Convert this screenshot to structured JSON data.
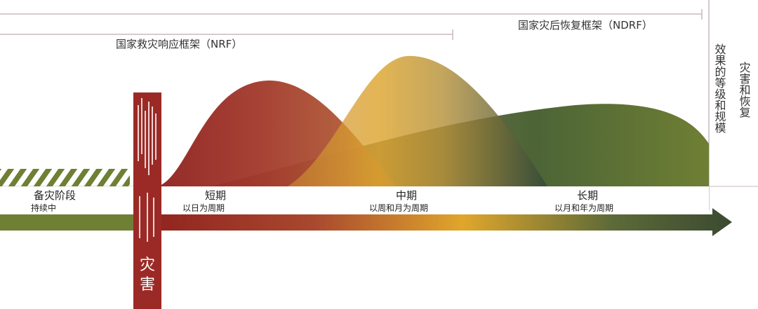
{
  "frameworks": {
    "ndrf_label": "国家灾后恢复框架（NDRF）",
    "nrf_label": "国家救灾响应框架（NRF）"
  },
  "axis": {
    "right_label_1": "效果的等级和规模",
    "right_label_2": "灾害和恢复"
  },
  "phases": {
    "prep": {
      "title": "备灾阶段",
      "subtitle": "持续中"
    },
    "short": {
      "title": "短期",
      "subtitle": "以日为周期"
    },
    "mid": {
      "title": "中期",
      "subtitle": "以周和月为周期"
    },
    "long": {
      "title": "长期",
      "subtitle": "以月和年为周期"
    }
  },
  "disaster": {
    "label": "灾害"
  },
  "colors": {
    "red": "#9b2a26",
    "dark_red": "#8e1f1d",
    "gold": "#e0a62c",
    "olive": "#6f7f34",
    "dark_green": "#3b4a30",
    "line": "#c8b9be"
  }
}
